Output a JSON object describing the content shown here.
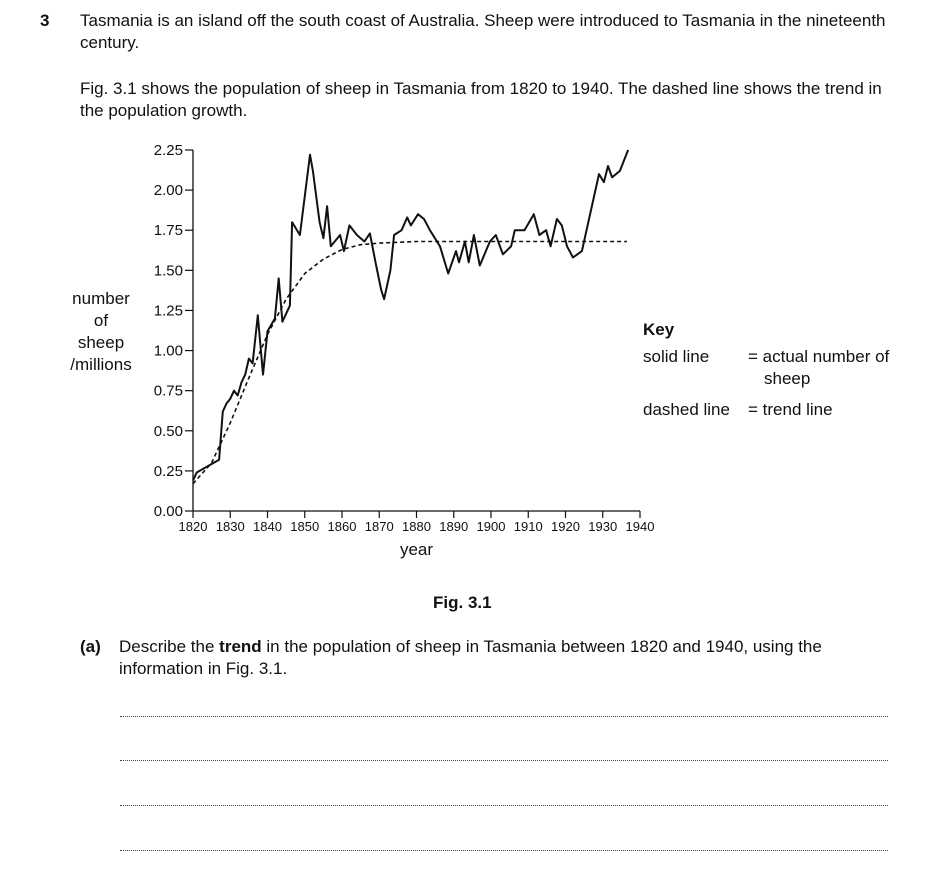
{
  "question": {
    "number": "3",
    "intro": [
      "Tasmania is an island off the south coast of Australia. Sheep were introduced to Tasmania in the nineteenth century.",
      "Fig. 3.1 shows the population of sheep in Tasmania from 1820 to 1940. The dashed line shows the trend in the population growth."
    ],
    "figure_caption": "Fig. 3.1",
    "part_a": {
      "label": "(a)",
      "text_before": "Describe the ",
      "bold": "trend",
      "text_after": " in the population of sheep in Tasmania between 1820 and 1940, using the information in Fig. 3.1."
    }
  },
  "chart_data": {
    "type": "line",
    "x_label": "year",
    "y_label": [
      "number",
      "of",
      "sheep",
      "/millions"
    ],
    "xlim": [
      1820,
      1940
    ],
    "xticks": [
      1820,
      1830,
      1840,
      1850,
      1860,
      1870,
      1880,
      1890,
      1900,
      1910,
      1920,
      1930,
      1940
    ],
    "ylim": [
      0,
      2.25
    ],
    "yticks": [
      {
        "value": 0,
        "label": "0.00"
      },
      0.25,
      {
        "value": 0.5,
        "label": "0.50"
      },
      0.75,
      {
        "value": 1,
        "label": "1.00"
      },
      1.25,
      {
        "value": 1.5,
        "label": "1.50"
      },
      1.75,
      {
        "value": 2,
        "label": "2.00"
      },
      2.25
    ],
    "key_title": "Key",
    "series": [
      {
        "name": "solid line",
        "description": "= actual number of sheep",
        "color": "#111111",
        "line_style": "solid",
        "x": [
          1820,
          1821,
          1827,
          1828,
          1829,
          1830,
          1831,
          1832,
          1833,
          1834,
          1835,
          1836,
          1837.4,
          1838.8,
          1840,
          1842,
          1843,
          1844,
          1846,
          1846.6,
          1848.7,
          1851.4,
          1852.2,
          1854,
          1855,
          1856,
          1857,
          1859.5,
          1860.5,
          1862,
          1864,
          1866,
          1867.5,
          1869,
          1870.5,
          1871.3,
          1873,
          1874,
          1876,
          1877.5,
          1878.5,
          1880.4,
          1882,
          1883.6,
          1886.3,
          1888.5,
          1890.6,
          1891.4,
          1893,
          1894,
          1895.4,
          1897,
          1899.7,
          1901.3,
          1903.2,
          1905.4,
          1906.4,
          1909,
          1911.5,
          1913,
          1914.8,
          1916,
          1917.7,
          1919,
          1920.4,
          1922,
          1924.4,
          1926.6,
          1929,
          1930.3,
          1931.4,
          1932.5,
          1934.6,
          1936.8
        ],
        "values": [
          0.19,
          0.24,
          0.32,
          0.62,
          0.67,
          0.7,
          0.75,
          0.72,
          0.8,
          0.85,
          0.95,
          0.92,
          1.22,
          0.85,
          1.12,
          1.2,
          1.45,
          1.18,
          1.28,
          1.8,
          1.72,
          2.22,
          2.12,
          1.8,
          1.7,
          1.9,
          1.65,
          1.72,
          1.62,
          1.78,
          1.72,
          1.68,
          1.73,
          1.55,
          1.38,
          1.32,
          1.5,
          1.72,
          1.75,
          1.83,
          1.78,
          1.85,
          1.82,
          1.75,
          1.65,
          1.48,
          1.62,
          1.55,
          1.68,
          1.55,
          1.72,
          1.53,
          1.68,
          1.72,
          1.6,
          1.65,
          1.75,
          1.75,
          1.85,
          1.72,
          1.75,
          1.65,
          1.82,
          1.78,
          1.65,
          1.58,
          1.62,
          1.85,
          2.1,
          2.05,
          2.15,
          2.08,
          2.12,
          2.25
        ]
      },
      {
        "name": "dashed line",
        "description": "= trend line",
        "color": "#111111",
        "line_style": "dashed",
        "x": [
          1820,
          1825,
          1830,
          1835,
          1840,
          1845,
          1850,
          1855,
          1860,
          1865,
          1870,
          1880,
          1900,
          1936.5
        ],
        "values": [
          0.17,
          0.3,
          0.55,
          0.83,
          1.1,
          1.32,
          1.48,
          1.57,
          1.63,
          1.66,
          1.67,
          1.68,
          1.68,
          1.68
        ]
      }
    ]
  }
}
